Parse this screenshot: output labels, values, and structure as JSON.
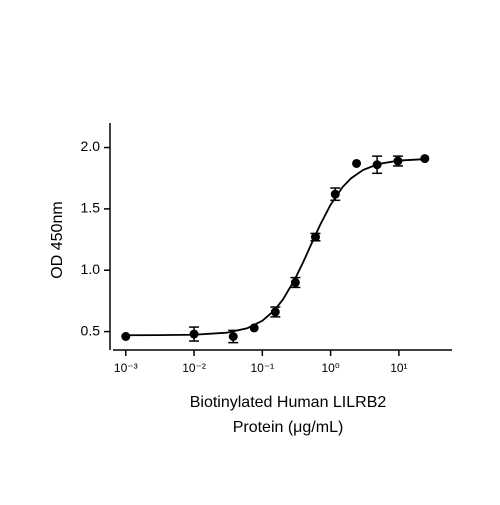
{
  "chart_data": {
    "type": "scatter",
    "x_label": [
      "Biotinylated Human LILRB2",
      "Protein (μg/mL)"
    ],
    "y_label": "OD 450nm",
    "log_x": true,
    "color": "#000000",
    "x": [
      0.001,
      0.01,
      0.0375,
      0.076,
      0.155,
      0.305,
      0.6,
      1.17,
      2.4,
      4.8,
      9.7,
      24
    ],
    "values": [
      0.46,
      0.48,
      0.46,
      0.53,
      0.66,
      0.9,
      1.27,
      1.62,
      1.87,
      1.86,
      1.89,
      1.91
    ],
    "errors": [
      0,
      0.057,
      0.05,
      0,
      0.04,
      0.04,
      0.03,
      0.05,
      0,
      0.07,
      0.04,
      0
    ],
    "curve": {
      "x": [
        0.001,
        0.003,
        0.01,
        0.03,
        0.06,
        0.1,
        0.15,
        0.2,
        0.3,
        0.4,
        0.5,
        0.7,
        1,
        1.5,
        2,
        3,
        5,
        10,
        25
      ],
      "values": [
        0.47,
        0.471,
        0.474,
        0.491,
        0.527,
        0.588,
        0.673,
        0.761,
        0.927,
        1.07,
        1.19,
        1.368,
        1.534,
        1.678,
        1.75,
        1.818,
        1.866,
        1.894,
        1.906
      ]
    },
    "xlim": [
      0.00065,
      60
    ],
    "ylim": [
      0.35,
      2.2
    ],
    "xticks": [
      {
        "value": 0.001,
        "label": "10⁻³"
      },
      {
        "value": 0.01,
        "label": "10⁻²"
      },
      {
        "value": 0.1,
        "label": "10⁻¹"
      },
      {
        "value": 1,
        "label": "10⁰"
      },
      {
        "value": 10,
        "label": "10¹"
      }
    ],
    "yticks": [
      0.5,
      {
        "value": 1,
        "label": "1.0"
      },
      1.5,
      {
        "value": 2,
        "label": "2.0"
      }
    ]
  }
}
